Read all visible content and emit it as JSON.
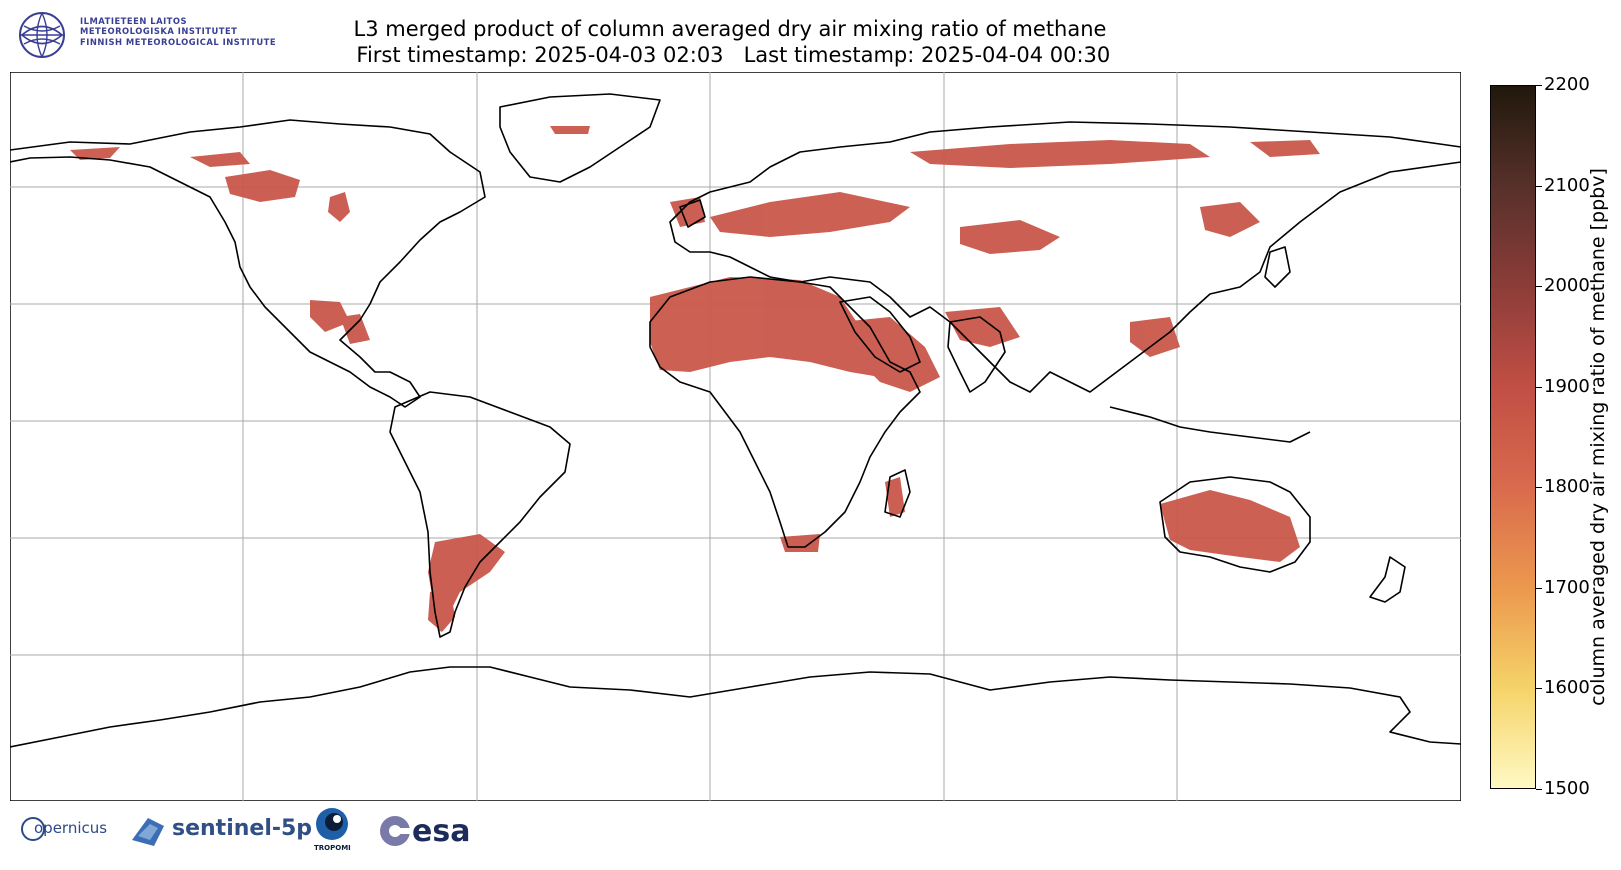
{
  "header": {
    "institute_lines": [
      "ILMATIETEEN LAITOS",
      "METEOROLOGISKA INSTITUTET",
      "FINNISH METEOROLOGICAL INSTITUTE"
    ],
    "title": "L3 merged product of column averaged dry air mixing ratio of methane",
    "subtitle": " First timestamp: 2025-04-03 02:03   Last timestamp: 2025-04-04 00:30"
  },
  "colorbar": {
    "label": "column averaged dry air mixing ratio of methane [ppbv]",
    "min": 1500,
    "max": 2200,
    "ticks": [
      "2200",
      "2100",
      "2000",
      "1900",
      "1800",
      "1700",
      "1600",
      "1500"
    ],
    "colors": [
      "#fff9c4",
      "#f5d46a",
      "#ec9a4e",
      "#d96a4d",
      "#c14f45",
      "#8e3d39",
      "#56302a",
      "#20180c"
    ]
  },
  "map": {
    "projection": "plate-carree",
    "gridlines": true,
    "data_color": "#c9574a"
  },
  "footer": {
    "logos": [
      "opernicus",
      "sentinel-5p",
      "TROPOMI",
      "esa"
    ]
  }
}
